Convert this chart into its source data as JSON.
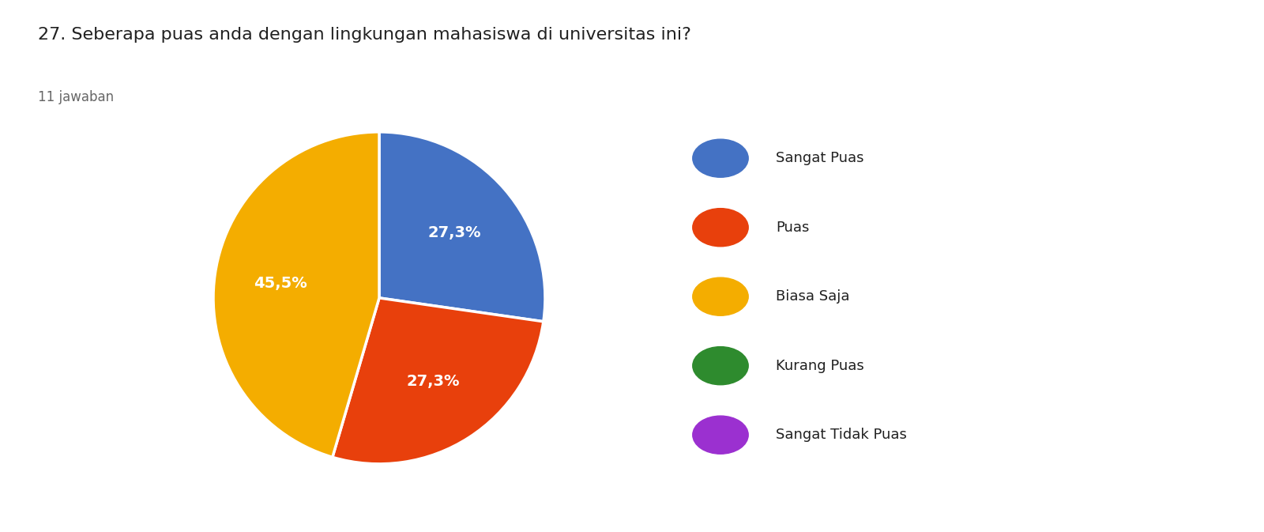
{
  "title": "27. Seberapa puas anda dengan lingkungan mahasiswa di universitas ini?",
  "subtitle": "11 jawaban",
  "labels": [
    "Sangat Puas",
    "Puas",
    "Biasa Saja",
    "Kurang Puas",
    "Sangat Tidak Puas"
  ],
  "values": [
    27.3,
    27.3,
    45.5,
    0,
    0
  ],
  "colors": [
    "#4472c4",
    "#e8400c",
    "#f4ad00",
    "#2e8b2e",
    "#9b30d0"
  ],
  "pct_labels": [
    "27,3%",
    "27,3%",
    "45,5%",
    "",
    ""
  ],
  "background_color": "#ffffff",
  "title_fontsize": 16,
  "subtitle_fontsize": 12,
  "pct_fontsize": 14
}
